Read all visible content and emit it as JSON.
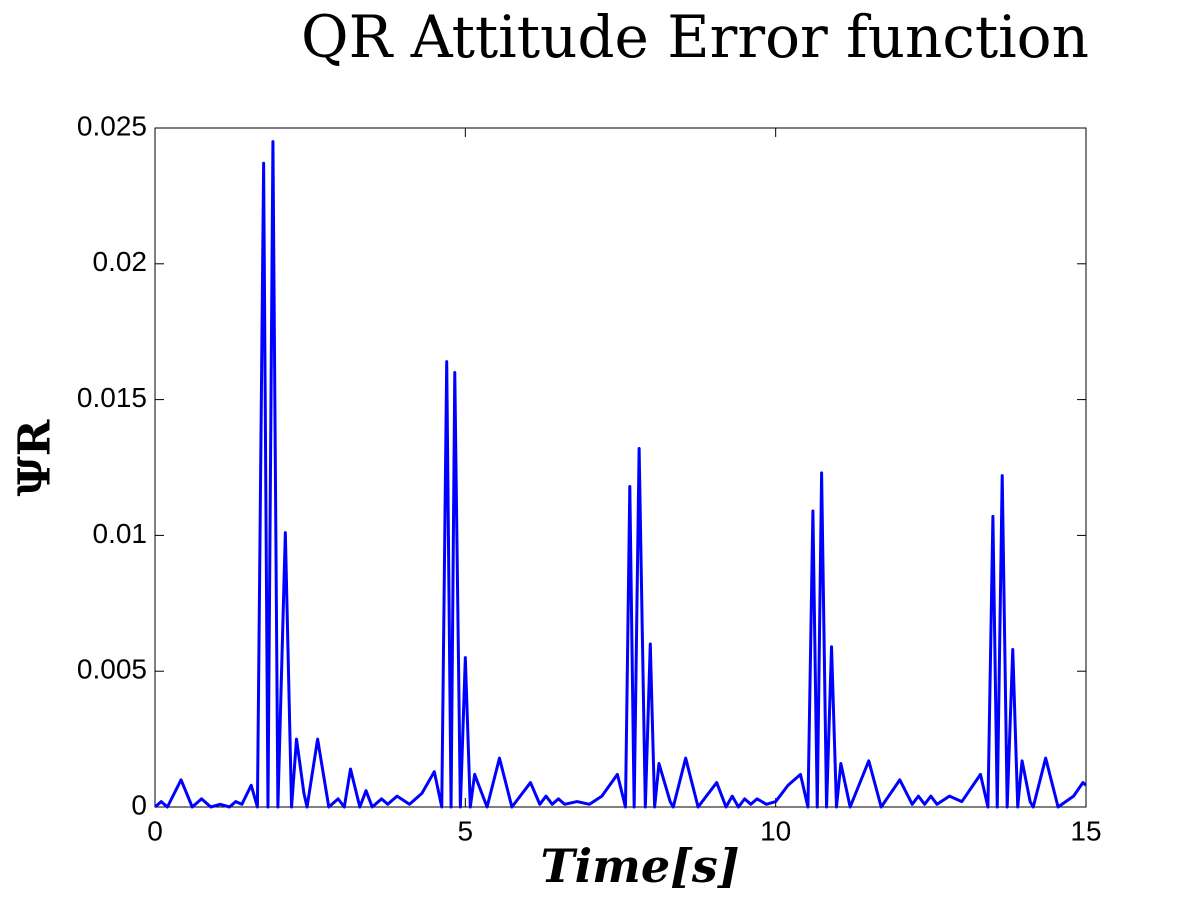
{
  "chart_data": {
    "type": "line",
    "title": "QR Attitude Error function",
    "x_label": "Time[s]",
    "y_label": "ΨR",
    "x": [
      0,
      0.1,
      0.2,
      0.42,
      0.6,
      0.75,
      0.9,
      1.05,
      1.2,
      1.3,
      1.4,
      1.55,
      1.65,
      1.75,
      1.82,
      1.9,
      1.98,
      2.1,
      2.2,
      2.28,
      2.4,
      2.45,
      2.62,
      2.8,
      2.95,
      3.05,
      3.15,
      3.3,
      3.4,
      3.5,
      3.65,
      3.75,
      3.9,
      4.1,
      4.3,
      4.5,
      4.62,
      4.7,
      4.77,
      4.83,
      4.92,
      5.0,
      5.08,
      5.15,
      5.3,
      5.35,
      5.55,
      5.75,
      6.05,
      6.2,
      6.3,
      6.4,
      6.5,
      6.6,
      6.8,
      7.0,
      7.2,
      7.45,
      7.58,
      7.65,
      7.72,
      7.8,
      7.9,
      7.98,
      8.05,
      8.12,
      8.3,
      8.35,
      8.55,
      8.75,
      9.05,
      9.2,
      9.3,
      9.4,
      9.5,
      9.6,
      9.7,
      9.85,
      10.0,
      10.2,
      10.4,
      10.52,
      10.6,
      10.67,
      10.74,
      10.82,
      10.9,
      10.98,
      11.05,
      11.2,
      11.5,
      11.7,
      12.0,
      12.2,
      12.3,
      12.4,
      12.5,
      12.6,
      12.8,
      13.0,
      13.3,
      13.42,
      13.5,
      13.57,
      13.65,
      13.73,
      13.82,
      13.9,
      13.97,
      14.1,
      14.15,
      14.35,
      14.55,
      14.8,
      14.95,
      15
    ],
    "series": [
      {
        "name": "ΨR",
        "color": "#0000ff",
        "values": [
          0,
          0.0002,
          0,
          0.001,
          0,
          0.0003,
          0,
          0.0001,
          0,
          0.0002,
          0.0001,
          0.0008,
          0,
          0.0237,
          0,
          0.0245,
          0,
          0.0101,
          0,
          0.0025,
          0.0005,
          0,
          0.0025,
          0,
          0.0003,
          0,
          0.0014,
          0,
          0.0006,
          0,
          0.0003,
          0.0001,
          0.0004,
          0.0001,
          0.0005,
          0.0013,
          0,
          0.0164,
          0,
          0.016,
          0,
          0.0055,
          0,
          0.0012,
          0.0003,
          0,
          0.0018,
          0,
          0.0009,
          0.0001,
          0.0004,
          0.0001,
          0.0003,
          0.0001,
          0.0002,
          0.0001,
          0.0004,
          0.0012,
          0,
          0.0118,
          0,
          0.0132,
          0,
          0.006,
          0,
          0.0016,
          0.0002,
          0,
          0.0018,
          0,
          0.0009,
          0,
          0.0004,
          0,
          0.0003,
          0.0001,
          0.0003,
          0.0001,
          0.0002,
          0.0008,
          0.0012,
          0,
          0.0109,
          0,
          0.0123,
          0,
          0.0059,
          0,
          0.0016,
          0,
          0.0017,
          0,
          0.001,
          0.0001,
          0.0004,
          0.0001,
          0.0004,
          0.0001,
          0.0004,
          0.0002,
          0.0012,
          0,
          0.0107,
          0,
          0.0122,
          0,
          0.0058,
          0,
          0.0017,
          0.0002,
          0,
          0.0018,
          0,
          0.0004,
          0.0009,
          0.0008
        ]
      }
    ],
    "xlim": [
      0,
      15
    ],
    "ylim": [
      0,
      0.025
    ],
    "xticks": [
      0,
      5,
      10,
      15
    ],
    "yticks": [
      0,
      0.005,
      0.01,
      0.015,
      0.02,
      0.025
    ]
  }
}
